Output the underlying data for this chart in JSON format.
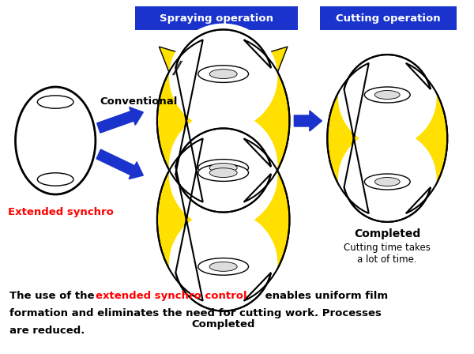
{
  "title_spraying": "Spraying operation",
  "title_cutting": "Cutting operation",
  "label_conventional": "Conventional",
  "label_extended": "Extended synchro",
  "label_completed_bottom": "Completed",
  "label_completed_right": "Completed",
  "label_cutting_note": "Cutting time takes\na lot of time.",
  "color_blue_header": "#1a33cc",
  "color_yellow": "#FFE000",
  "color_arrow": "#1a33cc",
  "color_red": "#FF0000",
  "color_black": "#000000",
  "color_white": "#FFFFFF",
  "color_bg": "#FFFFFF",
  "color_gray": "#cccccc"
}
